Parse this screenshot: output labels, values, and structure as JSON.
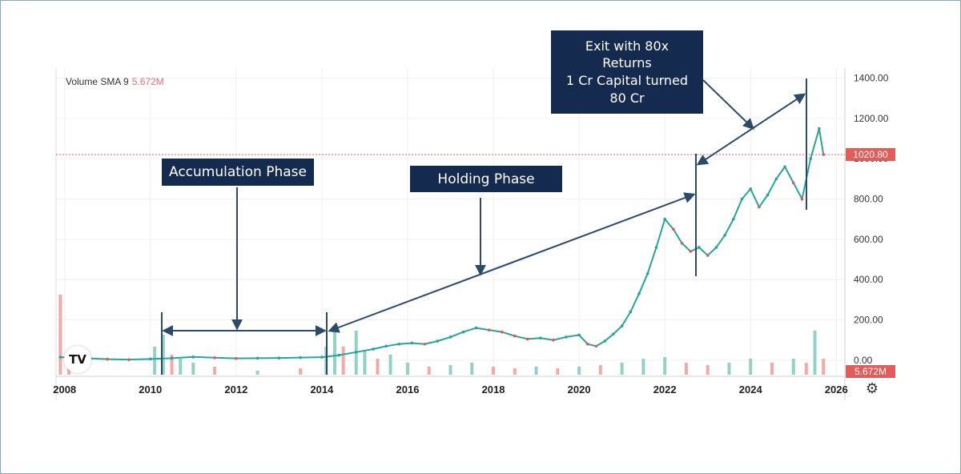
{
  "chart_data": {
    "type": "candlestick",
    "title": "",
    "xlabel": "",
    "ylabel": "",
    "x_ticks": [
      "2008",
      "2010",
      "2012",
      "2014",
      "2016",
      "2018",
      "2020",
      "2022",
      "2024",
      "2026"
    ],
    "y_ticks": [
      "0.00",
      "200.00",
      "400.00",
      "600.00",
      "800.00",
      "1000.00",
      "1200.00",
      "1400.00"
    ],
    "ylim": [
      -80,
      1450
    ],
    "xlim": [
      2007.8,
      2026.2
    ],
    "current_price": "1020.80",
    "price_series": [
      {
        "t": 2007.9,
        "v": 15
      },
      {
        "t": 2008.5,
        "v": 10
      },
      {
        "t": 2009.0,
        "v": 5
      },
      {
        "t": 2009.5,
        "v": 3
      },
      {
        "t": 2010.0,
        "v": 6
      },
      {
        "t": 2010.5,
        "v": 10
      },
      {
        "t": 2011.0,
        "v": 16
      },
      {
        "t": 2011.5,
        "v": 12
      },
      {
        "t": 2012.0,
        "v": 9
      },
      {
        "t": 2012.5,
        "v": 10
      },
      {
        "t": 2013.0,
        "v": 11
      },
      {
        "t": 2013.5,
        "v": 13
      },
      {
        "t": 2014.0,
        "v": 15
      },
      {
        "t": 2014.4,
        "v": 25
      },
      {
        "t": 2014.8,
        "v": 40
      },
      {
        "t": 2015.2,
        "v": 55
      },
      {
        "t": 2015.5,
        "v": 70
      },
      {
        "t": 2015.8,
        "v": 80
      },
      {
        "t": 2016.1,
        "v": 85
      },
      {
        "t": 2016.4,
        "v": 80
      },
      {
        "t": 2016.7,
        "v": 95
      },
      {
        "t": 2017.0,
        "v": 115
      },
      {
        "t": 2017.3,
        "v": 140
      },
      {
        "t": 2017.6,
        "v": 160
      },
      {
        "t": 2017.9,
        "v": 150
      },
      {
        "t": 2018.2,
        "v": 140
      },
      {
        "t": 2018.5,
        "v": 120
      },
      {
        "t": 2018.8,
        "v": 105
      },
      {
        "t": 2019.1,
        "v": 110
      },
      {
        "t": 2019.4,
        "v": 100
      },
      {
        "t": 2019.7,
        "v": 115
      },
      {
        "t": 2020.0,
        "v": 125
      },
      {
        "t": 2020.2,
        "v": 80
      },
      {
        "t": 2020.4,
        "v": 70
      },
      {
        "t": 2020.6,
        "v": 95
      },
      {
        "t": 2020.8,
        "v": 130
      },
      {
        "t": 2021.0,
        "v": 170
      },
      {
        "t": 2021.2,
        "v": 240
      },
      {
        "t": 2021.4,
        "v": 330
      },
      {
        "t": 2021.6,
        "v": 430
      },
      {
        "t": 2021.8,
        "v": 560
      },
      {
        "t": 2022.0,
        "v": 700
      },
      {
        "t": 2022.2,
        "v": 650
      },
      {
        "t": 2022.4,
        "v": 580
      },
      {
        "t": 2022.6,
        "v": 540
      },
      {
        "t": 2022.8,
        "v": 560
      },
      {
        "t": 2023.0,
        "v": 520
      },
      {
        "t": 2023.2,
        "v": 560
      },
      {
        "t": 2023.4,
        "v": 620
      },
      {
        "t": 2023.6,
        "v": 700
      },
      {
        "t": 2023.8,
        "v": 800
      },
      {
        "t": 2024.0,
        "v": 850
      },
      {
        "t": 2024.2,
        "v": 760
      },
      {
        "t": 2024.4,
        "v": 820
      },
      {
        "t": 2024.6,
        "v": 900
      },
      {
        "t": 2024.8,
        "v": 960
      },
      {
        "t": 2025.0,
        "v": 880
      },
      {
        "t": 2025.2,
        "v": 800
      },
      {
        "t": 2025.4,
        "v": 1000
      },
      {
        "t": 2025.6,
        "v": 1150
      },
      {
        "t": 2025.7,
        "v": 1020.8
      }
    ],
    "volume_series": [
      {
        "t": 2007.9,
        "v": 1.0,
        "up": false
      },
      {
        "t": 2008.1,
        "v": 0.3,
        "up": false
      },
      {
        "t": 2010.1,
        "v": 0.35,
        "up": true
      },
      {
        "t": 2010.3,
        "v": 0.5,
        "up": true
      },
      {
        "t": 2010.5,
        "v": 0.25,
        "up": false
      },
      {
        "t": 2010.7,
        "v": 0.2,
        "up": true
      },
      {
        "t": 2011.0,
        "v": 0.15,
        "up": true
      },
      {
        "t": 2011.5,
        "v": 0.1,
        "up": false
      },
      {
        "t": 2012.5,
        "v": 0.05,
        "up": true
      },
      {
        "t": 2013.5,
        "v": 0.08,
        "up": false
      },
      {
        "t": 2014.1,
        "v": 0.35,
        "up": true
      },
      {
        "t": 2014.3,
        "v": 0.6,
        "up": true
      },
      {
        "t": 2014.5,
        "v": 0.35,
        "up": false
      },
      {
        "t": 2014.8,
        "v": 0.55,
        "up": true
      },
      {
        "t": 2015.0,
        "v": 0.3,
        "up": true
      },
      {
        "t": 2015.3,
        "v": 0.2,
        "up": false
      },
      {
        "t": 2015.6,
        "v": 0.25,
        "up": true
      },
      {
        "t": 2016.0,
        "v": 0.15,
        "up": true
      },
      {
        "t": 2016.5,
        "v": 0.1,
        "up": false
      },
      {
        "t": 2017.0,
        "v": 0.12,
        "up": true
      },
      {
        "t": 2017.5,
        "v": 0.15,
        "up": true
      },
      {
        "t": 2018.0,
        "v": 0.1,
        "up": false
      },
      {
        "t": 2018.5,
        "v": 0.08,
        "up": false
      },
      {
        "t": 2019.0,
        "v": 0.1,
        "up": true
      },
      {
        "t": 2019.5,
        "v": 0.08,
        "up": false
      },
      {
        "t": 2020.0,
        "v": 0.1,
        "up": true
      },
      {
        "t": 2020.5,
        "v": 0.12,
        "up": false
      },
      {
        "t": 2021.0,
        "v": 0.15,
        "up": true
      },
      {
        "t": 2021.5,
        "v": 0.2,
        "up": true
      },
      {
        "t": 2022.0,
        "v": 0.22,
        "up": true
      },
      {
        "t": 2022.5,
        "v": 0.15,
        "up": false
      },
      {
        "t": 2023.0,
        "v": 0.12,
        "up": false
      },
      {
        "t": 2023.5,
        "v": 0.15,
        "up": true
      },
      {
        "t": 2024.0,
        "v": 0.2,
        "up": true
      },
      {
        "t": 2024.5,
        "v": 0.15,
        "up": false
      },
      {
        "t": 2025.0,
        "v": 0.2,
        "up": true
      },
      {
        "t": 2025.3,
        "v": 0.15,
        "up": false
      },
      {
        "t": 2025.5,
        "v": 0.55,
        "up": true
      },
      {
        "t": 2025.7,
        "v": 0.2,
        "up": false
      }
    ]
  },
  "legend": {
    "label": "Volume SMA 9",
    "value": "5.672M"
  },
  "price_tag": "1020.80",
  "volume_tag": "5.672M",
  "logo": "TV",
  "annotations": {
    "accumulation": "Accumulation Phase",
    "holding": "Holding Phase",
    "exit_lines": [
      "Exit with 80x",
      "Returns",
      "1 Cr Capital turned",
      "80 Cr"
    ]
  },
  "colors": {
    "up": "#26a69a",
    "down": "#ef5350",
    "annotation_bg": "#142b4f",
    "arrow": "#2c4b6b",
    "current_line": "#e25c59"
  }
}
